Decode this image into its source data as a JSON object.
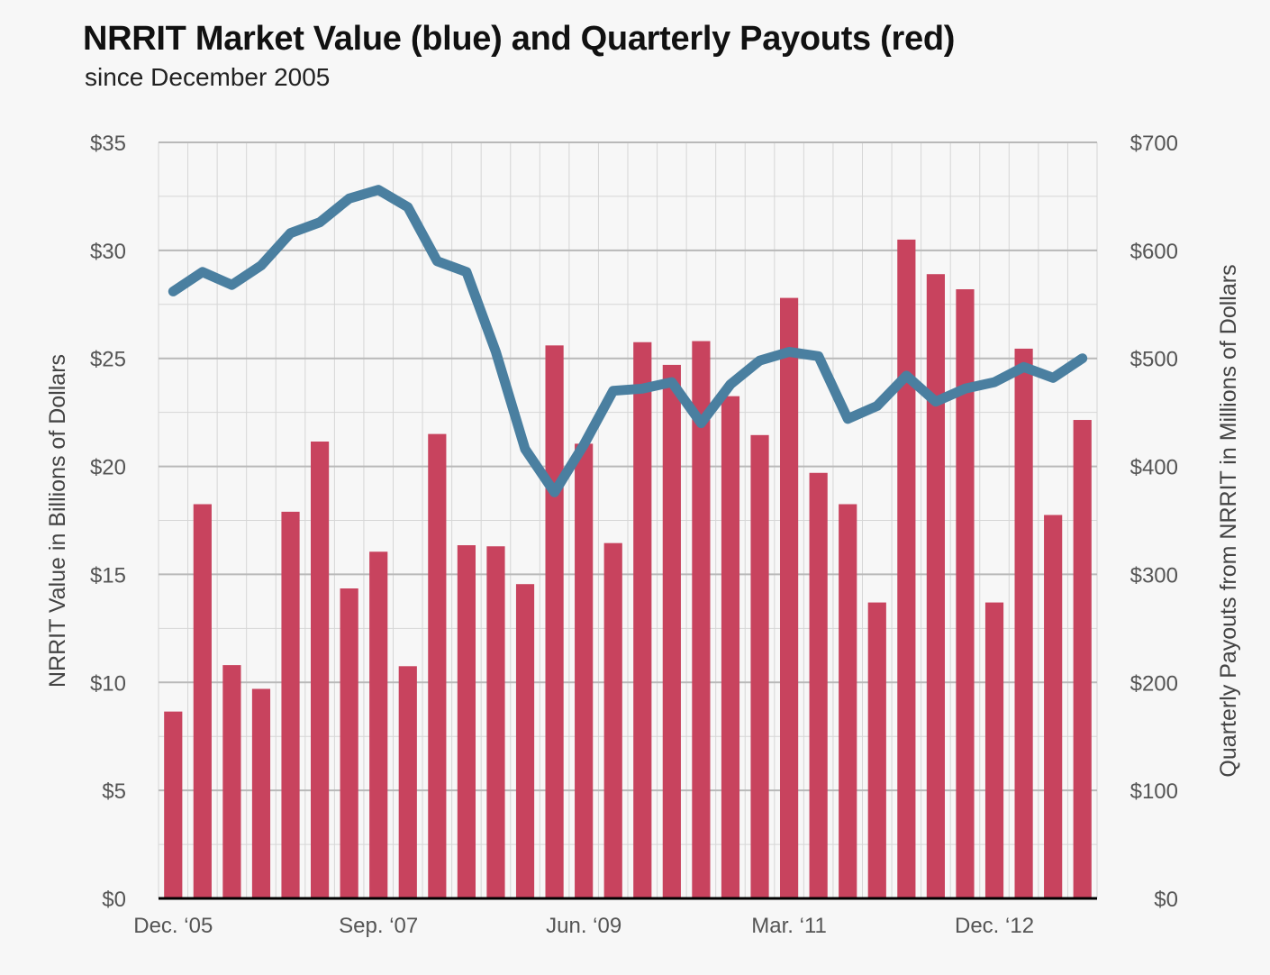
{
  "title": "NRRIT Market Value (blue) and Quarterly Payouts (red)",
  "subtitle": "since December 2005",
  "chart_data": {
    "type": "bar+line",
    "title": "NRRIT Market Value (blue) and Quarterly Payouts (red)",
    "subtitle": "since December 2005",
    "x_tick_labels": [
      "Dec. ‘05",
      "Sep. ‘07",
      "Jun. ‘09",
      "Mar. ‘11",
      "Dec. ‘12"
    ],
    "x_tick_indices": [
      0,
      7,
      14,
      21,
      28
    ],
    "left_axis": {
      "label": "NRRIT Value in Billions of Dollars",
      "ylim": [
        0,
        35
      ],
      "ticks": [
        0,
        5,
        10,
        15,
        20,
        25,
        30,
        35
      ],
      "tick_labels": [
        "$0",
        "$5",
        "$10",
        "$15",
        "$20",
        "$25",
        "$30",
        "$35"
      ]
    },
    "right_axis": {
      "label": "Quarterly Payouts from NRRIT in Millions of Dollars",
      "ylim": [
        0,
        700
      ],
      "ticks": [
        0,
        100,
        200,
        300,
        400,
        500,
        600,
        700
      ],
      "tick_labels": [
        "$0",
        "$100",
        "$200",
        "$300",
        "$400",
        "$500",
        "$600",
        "$700"
      ]
    },
    "series": [
      {
        "type": "bar",
        "axis": "right",
        "color": "#c8435e",
        "values": [
          173,
          365,
          216,
          194,
          358,
          423,
          287,
          321,
          215,
          430,
          327,
          326,
          291,
          512,
          421,
          329,
          515,
          494,
          516,
          465,
          429,
          556,
          394,
          365,
          274,
          610,
          578,
          564,
          274,
          509,
          355,
          443
        ]
      },
      {
        "type": "line",
        "axis": "left",
        "color": "#4a7fa0",
        "values": [
          28.1,
          29.0,
          28.4,
          29.3,
          30.8,
          31.3,
          32.4,
          32.8,
          32.0,
          29.5,
          29.0,
          25.3,
          20.8,
          18.8,
          21.0,
          23.5,
          23.6,
          23.9,
          22.0,
          23.8,
          24.9,
          25.3,
          25.1,
          22.2,
          22.8,
          24.2,
          23.0,
          23.6,
          23.9,
          24.6,
          24.1,
          25.0
        ]
      }
    ],
    "grid": true,
    "legend": "none"
  }
}
